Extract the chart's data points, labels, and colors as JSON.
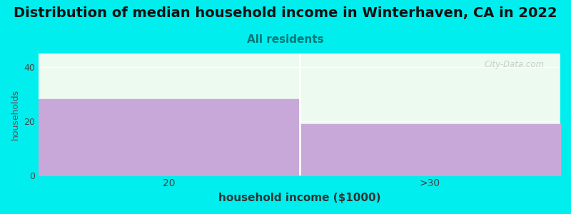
{
  "title": "Distribution of median household income in Winterhaven, CA in 2022",
  "subtitle": "All residents",
  "categories": [
    "20",
    ">30"
  ],
  "values": [
    28,
    19
  ],
  "bar_color": "#c8a8d8",
  "background_color": "#00eeee",
  "plot_bg_color": "#edfaef",
  "xlabel": "household income ($1000)",
  "ylabel": "households",
  "ylim": [
    0,
    45
  ],
  "yticks": [
    0,
    20,
    40
  ],
  "title_fontsize": 14,
  "subtitle_fontsize": 11,
  "subtitle_color": "#007777",
  "xlabel_fontsize": 11,
  "ylabel_fontsize": 9,
  "watermark": "City-Data.com",
  "grid_color": "#ffffff"
}
